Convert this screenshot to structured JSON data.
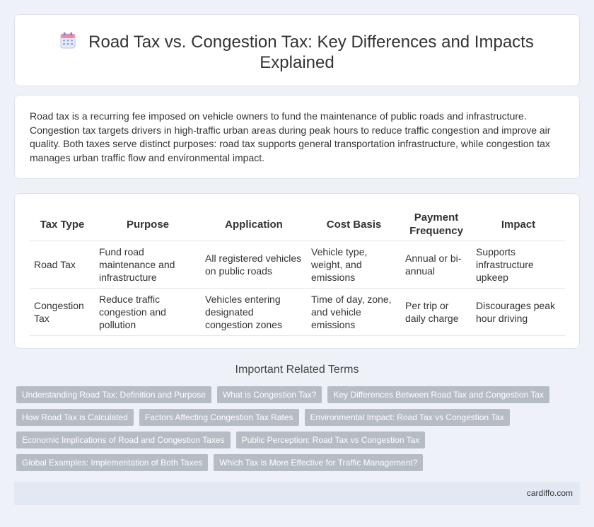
{
  "header": {
    "icon": "calendar-icon",
    "title": "Road Tax vs. Congestion Tax: Key Differences and Impacts Explained"
  },
  "intro": "Road tax is a recurring fee imposed on vehicle owners to fund the maintenance of public roads and infrastructure. Congestion tax targets drivers in high-traffic urban areas during peak hours to reduce traffic congestion and improve air quality. Both taxes serve distinct purposes: road tax supports general transportation infrastructure, while congestion tax manages urban traffic flow and environmental impact.",
  "table": {
    "headers": [
      "Tax Type",
      "Purpose",
      "Application",
      "Cost Basis",
      "Payment Frequency",
      "Impact"
    ],
    "rows": [
      [
        "Road Tax",
        "Fund road maintenance and infrastructure",
        "All registered vehicles on public roads",
        "Vehicle type, weight, and emissions",
        "Annual or bi-annual",
        "Supports infrastructure upkeep"
      ],
      [
        "Congestion Tax",
        "Reduce traffic congestion and pollution",
        "Vehicles entering designated congestion zones",
        "Time of day, zone, and vehicle emissions",
        "Per trip or daily charge",
        "Discourages peak hour driving"
      ]
    ]
  },
  "related": {
    "title": "Important Related Terms",
    "rows": [
      [
        "Understanding Road Tax: Definition and Purpose",
        "What is Congestion Tax?",
        "Key Differences Between Road Tax and Congestion Tax"
      ],
      [
        "How Road Tax is Calculated",
        "Factors Affecting Congestion Tax Rates",
        "Environmental Impact: Road Tax vs Congestion Tax"
      ],
      [
        "Economic Implications of Road and Congestion Taxes",
        "Public Perception: Road Tax vs Congestion Tax"
      ],
      [
        "Global Examples: Implementation of Both Taxes",
        "Which Tax is More Effective for Traffic Management?"
      ]
    ]
  },
  "footer": {
    "site": "cardiffo.com"
  }
}
